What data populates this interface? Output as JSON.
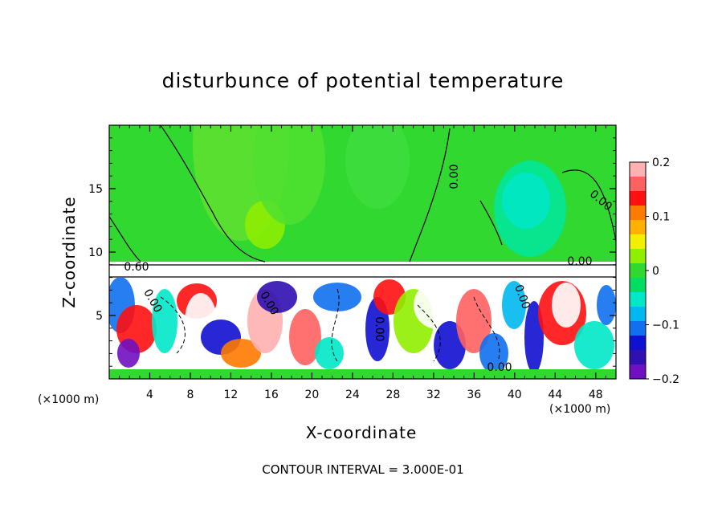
{
  "title": "disturbunce of potential temperature",
  "footer": "CONTOUR INTERVAL = 3.000E-01",
  "chart_data": {
    "type": "heatmap",
    "title": "disturbunce of potential temperature",
    "xlabel": "X-coordinate",
    "ylabel": "Z-coordinate",
    "x_unit_left": "(×1000 m)",
    "x_unit_right": "(×1000 m)",
    "xlim": [
      0,
      50
    ],
    "ylim": [
      0,
      20
    ],
    "x_ticks": [
      4,
      8,
      12,
      16,
      20,
      24,
      28,
      32,
      36,
      40,
      44,
      48
    ],
    "y_ticks": [
      5,
      10,
      15
    ],
    "colorbar": {
      "range": [
        -0.2,
        0.2
      ],
      "ticks": [
        0.2,
        0.1,
        0,
        -0.1,
        -0.2
      ],
      "tick_labels": [
        "0.2",
        "0.1",
        "0",
        "−0.1",
        "−0.2"
      ],
      "colors": [
        "#ffb0b0",
        "#ff6060",
        "#ff1010",
        "#ff7a00",
        "#ffb000",
        "#f0f000",
        "#90ee00",
        "#30d830",
        "#00dd60",
        "#00e8c8",
        "#00b8f0",
        "#1070f0",
        "#1010d0",
        "#3010b0",
        "#7010c0"
      ]
    },
    "contour_labels": [
      "0.00",
      "0.00",
      "0.00",
      "0.00",
      "0.00",
      "0.00",
      "0.00",
      "0.00",
      "0.60"
    ],
    "contour_interval": 0.3
  }
}
